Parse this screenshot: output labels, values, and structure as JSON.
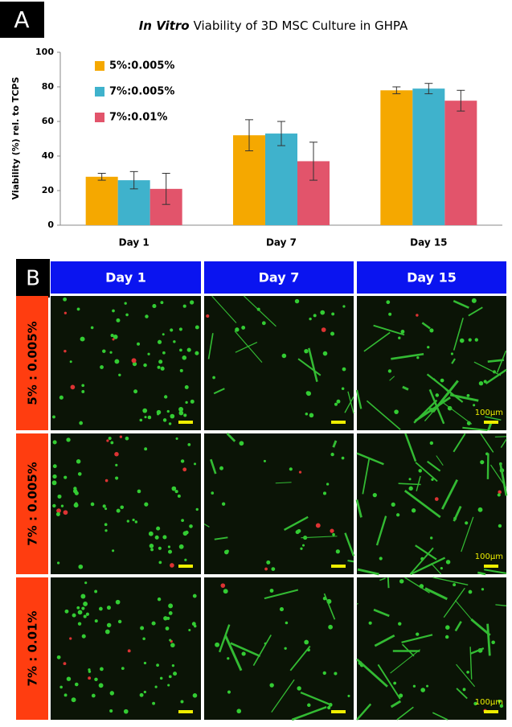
{
  "panel_labels": [
    "A",
    "B"
  ],
  "chart_data": {
    "type": "bar",
    "title_parts": [
      "In Vitro",
      "Viability of 3D MSC Culture in GHPA"
    ],
    "ylabel": "Viability (%) rel. to TCPS",
    "categories": [
      "Day 1",
      "Day 7",
      "Day 15"
    ],
    "series": [
      {
        "name": "5%:0.005%",
        "color": "#f5a800",
        "values": [
          28,
          52,
          78
        ],
        "errors": [
          2,
          9,
          2
        ]
      },
      {
        "name": "7%:0.005%",
        "color": "#3fb2cc",
        "values": [
          26,
          53,
          79
        ],
        "errors": [
          5,
          7,
          3
        ]
      },
      {
        "name": "7%:0.01%",
        "color": "#e2546b",
        "values": [
          21,
          37,
          72
        ],
        "errors": [
          9,
          11,
          6
        ]
      }
    ],
    "ylim": [
      0,
      100
    ],
    "yticks": [
      0,
      20,
      40,
      60,
      80,
      100
    ],
    "legend": "upper left"
  },
  "image_grid": {
    "columns": [
      "Day 1",
      "Day 7",
      "Day 15"
    ],
    "rows": [
      "5% : 0.005%",
      "7% : 0.005%",
      "7% : 0.01%"
    ],
    "scale_label": "100µm",
    "header_color": "#0a14f0",
    "row_label_color": "#ff3d10"
  }
}
